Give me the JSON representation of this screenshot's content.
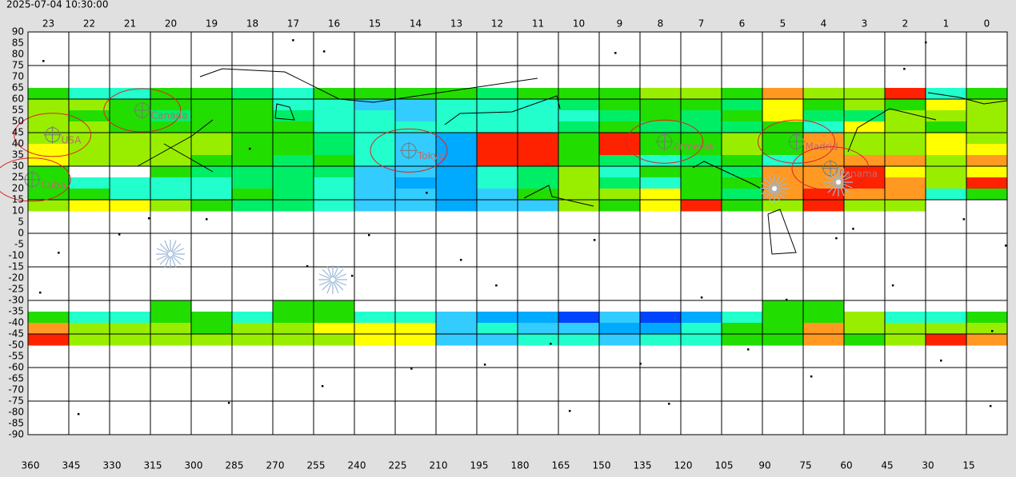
{
  "timestamp": "2025-07-04 10:30:00",
  "chart_data": {
    "type": "heatmap",
    "categories": [
      23,
      22,
      21,
      20,
      19,
      18,
      17,
      16,
      15,
      14,
      13,
      12,
      11,
      10,
      9,
      8,
      7,
      6,
      5,
      4,
      3,
      2,
      1,
      0
    ],
    "xlim": [
      360,
      0
    ],
    "xticks": [
      360,
      345,
      330,
      315,
      300,
      285,
      270,
      255,
      240,
      225,
      210,
      195,
      180,
      165,
      150,
      135,
      120,
      105,
      90,
      75,
      60,
      45,
      30,
      15
    ],
    "xgrid": [
      360,
      345,
      330,
      315,
      300,
      285,
      270,
      255,
      240,
      225,
      210,
      195,
      180,
      165,
      150,
      135,
      120,
      105,
      90,
      75,
      60,
      45,
      30,
      15,
      0
    ],
    "ylim": [
      -90,
      90
    ],
    "yticks": [
      90,
      85,
      80,
      75,
      70,
      65,
      60,
      55,
      50,
      45,
      40,
      35,
      30,
      25,
      20,
      15,
      10,
      5,
      0,
      -5,
      -10,
      -15,
      -20,
      -25,
      -30,
      -35,
      -40,
      -45,
      -50,
      -55,
      -60,
      -65,
      -70,
      -75,
      -80,
      -85,
      -90
    ],
    "ygrid": [
      90,
      75,
      60,
      45,
      30,
      15,
      0,
      -15,
      -30,
      -45,
      -60,
      -75,
      -90
    ],
    "heatmap": {
      "rows": [
        {
          "dec": [
            65,
            60
          ],
          "colors": [
            "#22dd00",
            "#22ffcc",
            "#22ffcc",
            "#22dd00",
            "#22dd00",
            "#00ee66",
            "#22ffcc",
            "#22dd00",
            "#22dd00",
            "#22dd00",
            "#22dd00",
            "#00ee66",
            "#22dd00",
            "#22dd00",
            "#22dd00",
            "#99ee00",
            "#99ee00",
            "#22dd00",
            "#ff9922",
            "#99ee00",
            "#99ee00",
            "#ff2200",
            "#22ffcc",
            "#22dd00"
          ]
        },
        {
          "dec": [
            60,
            55
          ],
          "colors": [
            "#99ee00",
            "#99ee00",
            "#22dd00",
            "#22dd00",
            "#22dd00",
            "#22dd00",
            "#22ffcc",
            "#22ffcc",
            "#33ccff",
            "#33ccff",
            "#22ffcc",
            "#22ffcc",
            "#22ffcc",
            "#00ee66",
            "#22dd00",
            "#22dd00",
            "#22dd00",
            "#00ee66",
            "#ffff00",
            "#22dd00",
            "#99ee00",
            "#22dd00",
            "#ffff00",
            "#99ee00"
          ]
        },
        {
          "dec": [
            55,
            50
          ],
          "colors": [
            "#99ee00",
            "#22dd00",
            "#22dd00",
            "#00ee66",
            "#22dd00",
            "#22dd00",
            "#00ee66",
            "#22ffcc",
            "#22ffcc",
            "#33ccff",
            "#22ffcc",
            "#22ffcc",
            "#22ffcc",
            "#22ffcc",
            "#00ee66",
            "#22dd00",
            "#00ee66",
            "#22dd00",
            "#ffff00",
            "#00ee66",
            "#00ee66",
            "#99ee00",
            "#99ee00",
            "#99ee00"
          ]
        },
        {
          "dec": [
            50,
            45
          ],
          "colors": [
            "#99ee00",
            "#99ee00",
            "#22dd00",
            "#22dd00",
            "#22dd00",
            "#22dd00",
            "#22dd00",
            "#22ffcc",
            "#22ffcc",
            "#22ffcc",
            "#22ffcc",
            "#22ffcc",
            "#22ffcc",
            "#00ee66",
            "#22dd00",
            "#00ee66",
            "#00ee66",
            "#00ee66",
            "#22dd00",
            "#22ffcc",
            "#ffff00",
            "#99ee00",
            "#22dd00",
            "#99ee00"
          ]
        },
        {
          "dec": [
            45,
            40
          ],
          "colors": [
            "#99ee00",
            "#99ee00",
            "#99ee00",
            "#99ee00",
            "#99ee00",
            "#22dd00",
            "#22dd00",
            "#00ee66",
            "#22ffcc",
            "#33ccff",
            "#00aaff",
            "#ff2200",
            "#ff2200",
            "#22dd00",
            "#ff2200",
            "#22dd00",
            "#22dd00",
            "#99ee00",
            "#22dd00",
            "#ff9922",
            "#99ee00",
            "#99ee00",
            "#ffff00",
            "#99ee00"
          ]
        },
        {
          "dec": [
            40,
            35
          ],
          "colors": [
            "#ffff00",
            "#99ee00",
            "#99ee00",
            "#99ee00",
            "#99ee00",
            "#22dd00",
            "#22dd00",
            "#00ee66",
            "#22ffcc",
            "#33ccff",
            "#00aaff",
            "#ff2200",
            "#ff2200",
            "#22dd00",
            "#ff2200",
            "#22dd00",
            "#22dd00",
            "#99ee00",
            "#22dd00",
            "#ff9922",
            "#99ee00",
            "#99ee00",
            "#ffff00",
            "#ffff00"
          ]
        },
        {
          "dec": [
            35,
            30
          ],
          "colors": [
            "#ffff00",
            "#99ee00",
            "#99ee00",
            "#99ee00",
            "#22dd00",
            "#22dd00",
            "#00ee66",
            "#22dd00",
            "#22ffcc",
            "#33ccff",
            "#00aaff",
            "#ff2200",
            "#ff2200",
            "#22dd00",
            "#00ee66",
            "#22ffcc",
            "#00ee66",
            "#22dd00",
            "#22ffcc",
            "#ff9922",
            "#ff9922",
            "#ff9922",
            "#99ee00",
            "#ff9922"
          ]
        },
        {
          "dec": [
            30,
            25
          ],
          "colors": [
            "#22dd00",
            null,
            null,
            "#22dd00",
            "#00ee66",
            "#00ee66",
            "#00ee66",
            "#00ee66",
            "#33ccff",
            "#33ccff",
            "#00aaff",
            "#22ffcc",
            "#00ee66",
            "#99ee00",
            "#22ffcc",
            "#22dd00",
            "#22dd00",
            "#00ee66",
            "#ff9922",
            "#ff9922",
            "#ff2200",
            "#ffff00",
            "#99ee00",
            "#ffff00"
          ]
        },
        {
          "dec": [
            25,
            20
          ],
          "colors": [
            "#22dd00",
            "#22ffcc",
            "#22ffcc",
            "#22ffcc",
            "#22ffcc",
            "#00ee66",
            "#00ee66",
            "#22ffcc",
            "#33ccff",
            "#00aaff",
            "#00aaff",
            "#22ffcc",
            "#00ee66",
            "#99ee00",
            "#00ee66",
            "#22ffcc",
            "#22dd00",
            "#22dd00",
            "#ff9922",
            "#ff9922",
            "#ff2200",
            "#ff9922",
            "#99ee00",
            "#ff2200"
          ]
        },
        {
          "dec": [
            20,
            15
          ],
          "colors": [
            "#22dd00",
            "#22dd00",
            "#22ffcc",
            "#22ffcc",
            "#22ffcc",
            "#22dd00",
            "#00ee66",
            "#22ffcc",
            "#33ccff",
            "#33ccff",
            "#00aaff",
            "#33ccff",
            "#22dd00",
            "#99ee00",
            "#99ee00",
            "#ffff00",
            "#22dd00",
            "#00ee66",
            "#ff9922",
            "#ff2200",
            "#ff9922",
            "#ff9922",
            "#22ffcc",
            "#22dd00"
          ]
        },
        {
          "dec": [
            15,
            10
          ],
          "colors": [
            "#99ee00",
            "#ffff00",
            "#ffff00",
            "#99ee00",
            "#22dd00",
            "#00ee66",
            "#00ee66",
            "#22ffcc",
            "#33ccff",
            "#33ccff",
            "#00aaff",
            "#33ccff",
            "#33ccff",
            "#99ee00",
            "#22dd00",
            "#ffff00",
            "#ff2200",
            "#22dd00",
            "#99ee00",
            "#ff2200",
            "#99ee00",
            "#99ee00",
            null,
            null
          ]
        },
        {
          "dec": [
            -30,
            -35
          ],
          "colors": [
            null,
            null,
            null,
            "#22dd00",
            null,
            null,
            "#22dd00",
            "#22dd00",
            null,
            null,
            null,
            null,
            null,
            null,
            null,
            null,
            null,
            null,
            "#22dd00",
            "#22dd00",
            null,
            null,
            null,
            null
          ]
        },
        {
          "dec": [
            -35,
            -40
          ],
          "colors": [
            "#22dd00",
            "#22ffcc",
            "#22ffcc",
            "#22dd00",
            "#22dd00",
            "#22ffcc",
            "#22dd00",
            "#22dd00",
            "#22ffcc",
            "#22ffcc",
            "#33ccff",
            "#00aaff",
            "#00aaff",
            "#0044ff",
            "#33ccff",
            "#0044ff",
            "#00aaff",
            "#22ffcc",
            "#22dd00",
            "#22dd00",
            "#99ee00",
            "#22ffcc",
            "#22ffcc",
            "#22dd00"
          ]
        },
        {
          "dec": [
            -40,
            -45
          ],
          "colors": [
            "#ff9922",
            "#99ee00",
            "#99ee00",
            "#99ee00",
            "#22dd00",
            "#99ee00",
            "#99ee00",
            "#ffff00",
            "#ffff00",
            "#ffff00",
            "#33ccff",
            "#22ffcc",
            "#33ccff",
            "#33ccff",
            "#00aaff",
            "#00aaff",
            "#22ffcc",
            "#22dd00",
            "#22dd00",
            "#ff9922",
            "#99ee00",
            "#99ee00",
            "#99ee00",
            "#99ee00"
          ]
        },
        {
          "dec": [
            -45,
            -50
          ],
          "colors": [
            "#ff2200",
            "#99ee00",
            "#99ee00",
            "#99ee00",
            "#99ee00",
            "#99ee00",
            "#99ee00",
            "#99ee00",
            "#ffff00",
            "#ffff00",
            "#33ccff",
            "#33ccff",
            "#22ffcc",
            "#22ffcc",
            "#33ccff",
            "#22ffcc",
            "#22ffcc",
            "#22dd00",
            "#22dd00",
            "#ff9922",
            "#22dd00",
            "#99ee00",
            "#ff2200",
            "#ff9922"
          ]
        }
      ]
    },
    "stars": {
      "x": [
        354.4,
        262.6,
        251.2,
        144.1,
        37.9,
        30,
        278.5,
        294.4,
        326.5,
        348.8,
        257.4,
        200.9,
        187.9,
        151.8,
        112.4,
        95.3,
        24.4,
        6.2,
        341.5,
        251.8,
        219.1,
        192.1,
        124.4,
        160.9,
        72.1,
        42.1,
        0.6,
        56.7,
        234.7,
        213.5,
        315.6,
        286.2,
        16,
        62.9,
        5.6,
        355.6,
        167.9,
        134.9,
        81.2,
        240.9
      ],
      "y": [
        77.1,
        86.4,
        81.4,
        80.7,
        73.6,
        85.4,
        37.9,
        6.4,
        -0.4,
        -8.6,
        -14.6,
        -11.8,
        -23.2,
        -2.9,
        -28.6,
        -51.8,
        -56.8,
        -77.1,
        -80.7,
        -68.2,
        -60.4,
        -58.6,
        -76.1,
        -79.3,
        -63.9,
        -23.2,
        -5.4,
        2.1,
        -0.7,
        18.2,
        6.8,
        -75.7,
        6.4,
        -2.1,
        -43.6,
        -26.4,
        -49.3,
        -58.2,
        -29.6,
        -18.9
      ]
    },
    "cities": [
      {
        "name": "USA",
        "ra": 351,
        "dec": 44
      },
      {
        "name": "Canada",
        "ra": 318,
        "dec": 55
      },
      {
        "name": "Cuba",
        "ra": 358.5,
        "dec": 24
      },
      {
        "name": "Tokyo",
        "ra": 220,
        "dec": 37
      },
      {
        "name": "Armenia",
        "ra": 126,
        "dec": 41
      },
      {
        "name": "Madrid",
        "ra": 77.5,
        "dec": 41
      },
      {
        "name": "Panama",
        "ra": 65,
        "dec": 29
      }
    ]
  }
}
